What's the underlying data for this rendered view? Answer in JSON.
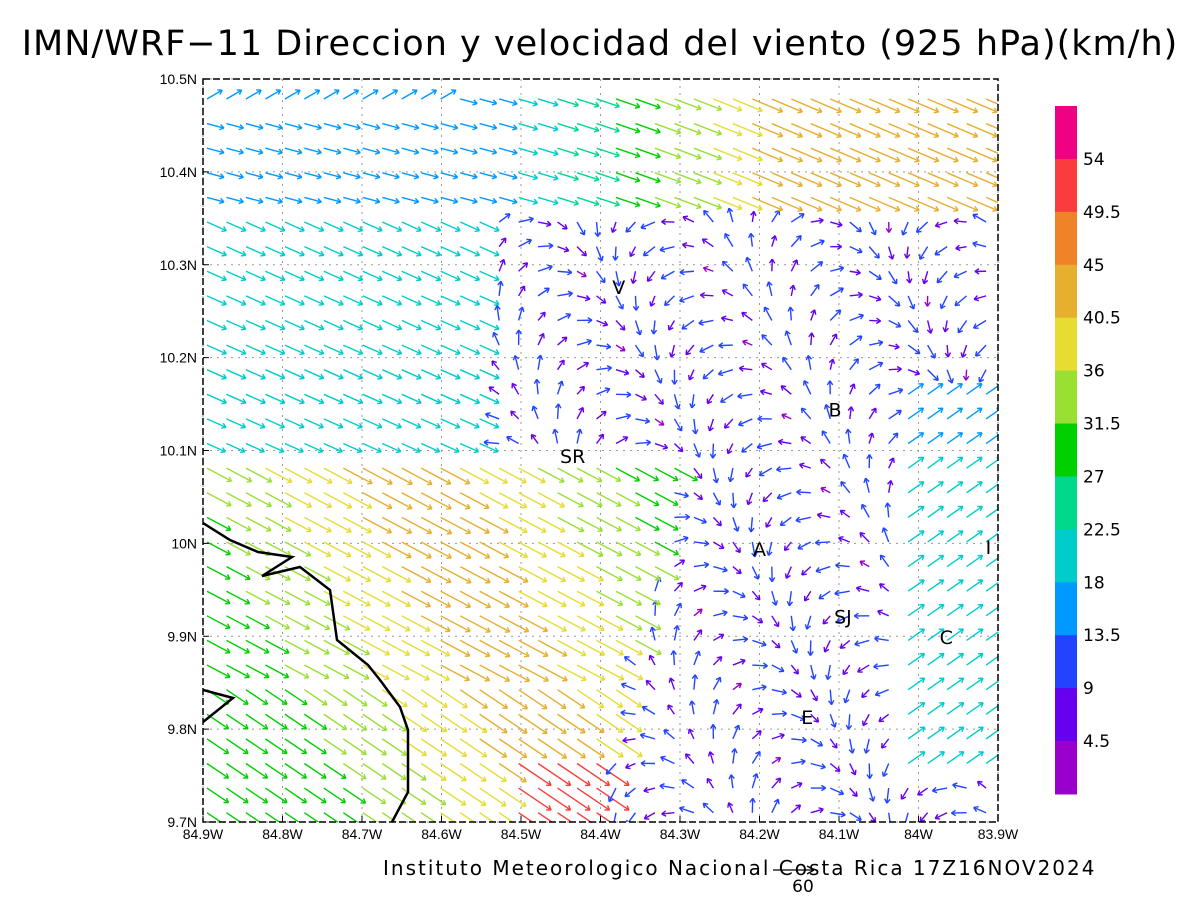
{
  "title": "IMN/WRF−11 Direccion y velocidad del viento (925 hPa)(km/h)",
  "footer": "Instituto Meteorologico Nacional Costa Rica 17Z16NOV2024",
  "map": {
    "lon_range": [
      -84.9,
      -83.9
    ],
    "lat_range": [
      9.7,
      10.5
    ],
    "x_ticks": [
      "84.9W",
      "84.8W",
      "84.7W",
      "84.6W",
      "84.5W",
      "84.4W",
      "84.3W",
      "84.2W",
      "84.1W",
      "84W",
      "83.9W"
    ],
    "y_ticks": [
      "9.7N",
      "9.8N",
      "9.9N",
      "10N",
      "10.1N",
      "10.2N",
      "10.3N",
      "10.4N",
      "10.5N"
    ],
    "grid": "dotted",
    "places": [
      {
        "label": "V",
        "lon": -84.377,
        "lat": 10.276
      },
      {
        "label": "SR",
        "lon": -84.435,
        "lat": 10.094
      },
      {
        "label": "B",
        "lon": -84.105,
        "lat": 10.144
      },
      {
        "label": "A",
        "lon": -84.2,
        "lat": 9.994
      },
      {
        "label": "I",
        "lon": -83.912,
        "lat": 9.996
      },
      {
        "label": "SJ",
        "lon": -84.095,
        "lat": 9.921
      },
      {
        "label": "C",
        "lon": -83.965,
        "lat": 9.899
      },
      {
        "label": "E",
        "lon": -84.14,
        "lat": 9.813
      }
    ],
    "reference_vector": {
      "label": "60",
      "speed": 60
    }
  },
  "colorbar": {
    "levels": [
      "4.5",
      "9",
      "13.5",
      "18",
      "22.5",
      "27",
      "31.5",
      "36",
      "40.5",
      "45",
      "49.5",
      "54"
    ],
    "colors": [
      "#9900cc",
      "#6600ee",
      "#2244ff",
      "#0099ff",
      "#00cccc",
      "#00d98c",
      "#00d000",
      "#99e033",
      "#e6dc32",
      "#e6af2d",
      "#f08228",
      "#fa3c3c",
      "#f00082"
    ]
  },
  "wind_regions": [
    {
      "name": "north band",
      "lat": [
        10.37,
        10.5
      ],
      "lon": [
        -84.9,
        -83.9
      ],
      "speed_kmh": "13.5-45",
      "direction": "toward east-southeast"
    },
    {
      "name": "northwest flow",
      "lat": [
        10.1,
        10.37
      ],
      "lon": [
        -84.9,
        -84.6
      ],
      "speed_kmh": "13.5-27",
      "direction": "toward southeast"
    },
    {
      "name": "southwest plume",
      "lat": [
        9.7,
        10.1
      ],
      "lon": [
        -84.85,
        -84.35
      ],
      "speed_kmh": "36-54",
      "direction": "toward southeast"
    },
    {
      "name": "central valley",
      "lat": [
        9.8,
        10.1
      ],
      "lon": [
        -84.35,
        -83.95
      ],
      "speed_kmh": "2-18",
      "direction": "light and variable"
    },
    {
      "name": "eastern inflow",
      "lat": [
        9.75,
        10.15
      ],
      "lon": [
        -84.05,
        -83.9
      ],
      "speed_kmh": "13.5-31.5",
      "direction": "toward northeast"
    }
  ]
}
